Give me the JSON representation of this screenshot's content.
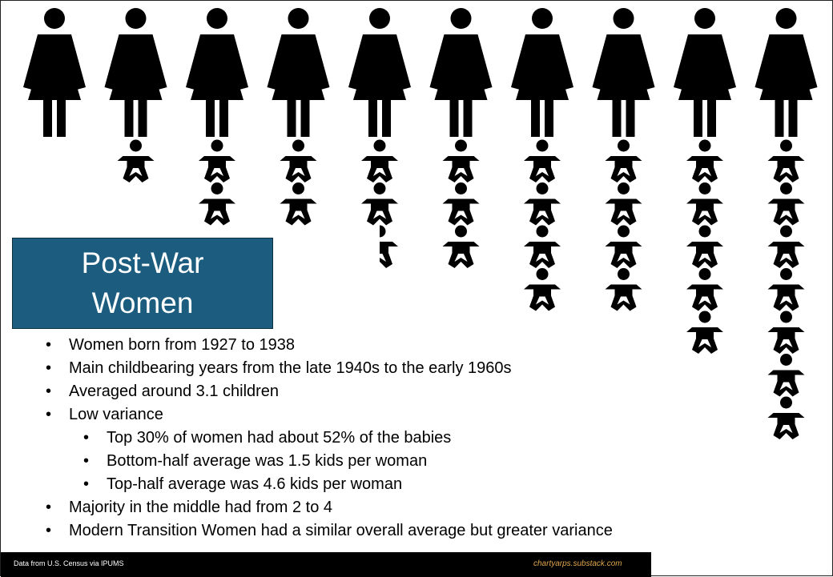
{
  "chart_data": {
    "type": "pictogram",
    "title": "Post-War Women",
    "women": 10,
    "children_per_woman": [
      0,
      1,
      2,
      2,
      2.5,
      3,
      4,
      4,
      5,
      7
    ]
  },
  "bullets": [
    {
      "level": 1,
      "text": "Women born from 1927 to 1938"
    },
    {
      "level": 1,
      "text": "Main childbearing years from the late 1940s to the early 1960s"
    },
    {
      "level": 1,
      "text": "Averaged around 3.1 children"
    },
    {
      "level": 1,
      "text": "Low variance"
    },
    {
      "level": 2,
      "text": "Top 30% of women had about 52% of the babies"
    },
    {
      "level": 2,
      "text": "Bottom-half average was 1.5 kids per woman"
    },
    {
      "level": 2,
      "text": "Top-half average was 4.6 kids per woman"
    },
    {
      "level": 1,
      "text": "Majority in the middle had from 2 to 4"
    },
    {
      "level": 1,
      "text": "Modern Transition Women had a similar overall average but greater variance"
    }
  ],
  "footer": {
    "source": "Data from U.S. Census via IPUMS",
    "site": "chartyarps.substack.com"
  },
  "colors": {
    "title_box": "#1b5c7f",
    "icons": "#000000",
    "footer_bg": "#000000",
    "footer_credit": "#e0a64c"
  },
  "icons": [
    "woman-icon",
    "baby-icon"
  ]
}
